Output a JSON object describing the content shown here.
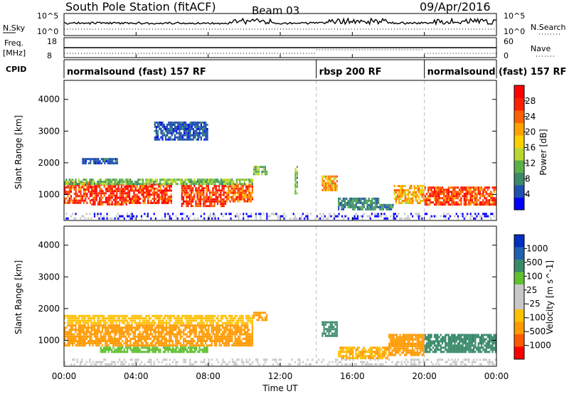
{
  "header": {
    "station": "South Pole Station (fitACF)",
    "beam": "Beam 03",
    "date": "09/Apr/2016"
  },
  "info_panels": {
    "nsky_label": "N.Sky",
    "nsearch_label": "N.Search",
    "nsky_ticks": [
      "10^5",
      "10^0"
    ],
    "nsearch_ticks": [
      "10^5",
      "10^0"
    ],
    "freq_label": "Freq.",
    "freq_unit": "[MHz]",
    "freq_ticks": [
      "18",
      "8"
    ],
    "nave_label": "Nave",
    "nave_ticks": [
      "60",
      "0"
    ],
    "cpid_label": "CPID",
    "cpid_segments": [
      {
        "label": "normalsound (fast) 157 RF",
        "start_hour": 0,
        "end_hour": 14
      },
      {
        "label": "rbsp 200 RF",
        "start_hour": 14,
        "end_hour": 20
      },
      {
        "label": "normalsound (fast) 157 RF",
        "start_hour": 20,
        "end_hour": 24
      }
    ]
  },
  "colors": {
    "power_scale": [
      "#0000ff",
      "#2050b0",
      "#3a8a6a",
      "#5cb04a",
      "#b8d830",
      "#ffd000",
      "#ffa000",
      "#ff6000",
      "#ff2000",
      "#ff0000"
    ],
    "velocity_scale": [
      "#ff0000",
      "#ff5a00",
      "#ff9a00",
      "#ffc000",
      "#c8c8c8",
      "#c8c8c8",
      "#60c030",
      "#3a8a6a",
      "#2060b0",
      "#0030c0"
    ],
    "gray": "#c8c8c8"
  },
  "chart_data": [
    {
      "type": "heatmap",
      "name": "power",
      "ylabel": "Slant Range [km]",
      "xlabel": "",
      "xlim": [
        0,
        24
      ],
      "ylim": [
        180,
        4600
      ],
      "yticks": [
        "1000",
        "2000",
        "3000",
        "4000"
      ],
      "xtick_hours": [
        0,
        4,
        8,
        12,
        16,
        20,
        24
      ],
      "colorbar": {
        "label": "Power [dB]",
        "ticks": [
          "4",
          "8",
          "12",
          "16",
          "20",
          "24",
          "28"
        ],
        "range": [
          0,
          32
        ]
      },
      "bands": [
        {
          "t0": 0.0,
          "t1": 1.5,
          "r0": 700,
          "r1": 1400,
          "value": 26
        },
        {
          "t0": 1.5,
          "t1": 3.5,
          "r0": 650,
          "r1": 1350,
          "value": 28
        },
        {
          "t0": 3.5,
          "t1": 6.0,
          "r0": 700,
          "r1": 1350,
          "value": 27
        },
        {
          "t0": 6.5,
          "t1": 9.0,
          "r0": 600,
          "r1": 1300,
          "value": 27
        },
        {
          "t0": 9.0,
          "t1": 10.5,
          "r0": 750,
          "r1": 1350,
          "value": 24
        },
        {
          "t0": 0.0,
          "t1": 10.5,
          "r0": 1300,
          "r1": 1500,
          "value": 12
        },
        {
          "t0": 10.5,
          "t1": 11.3,
          "r0": 1600,
          "r1": 1900,
          "value": 12
        },
        {
          "t0": 12.8,
          "t1": 13.0,
          "r0": 1000,
          "r1": 1900,
          "value": 12
        },
        {
          "t0": 14.3,
          "t1": 15.2,
          "r0": 1100,
          "r1": 1600,
          "value": 20
        },
        {
          "t0": 15.2,
          "t1": 17.5,
          "r0": 500,
          "r1": 900,
          "value": 8
        },
        {
          "t0": 17.5,
          "t1": 18.3,
          "r0": 500,
          "r1": 700,
          "value": 8
        },
        {
          "t0": 18.3,
          "t1": 20.0,
          "r0": 700,
          "r1": 1300,
          "value": 20
        },
        {
          "t0": 20.0,
          "t1": 24.0,
          "r0": 650,
          "r1": 1250,
          "value": 26
        },
        {
          "t0": 1.0,
          "t1": 3.0,
          "r0": 1950,
          "r1": 2150,
          "value": 5
        },
        {
          "t0": 5.0,
          "t1": 8.0,
          "r0": 2700,
          "r1": 3300,
          "value": 5
        },
        {
          "t0": 0.0,
          "t1": 24.0,
          "r0": 200,
          "r1": 420,
          "value": 0
        }
      ]
    },
    {
      "type": "heatmap",
      "name": "velocity",
      "ylabel": "Slant Range [km]",
      "xlabel": "Time UT",
      "xlim": [
        0,
        24
      ],
      "ylim": [
        180,
        4600
      ],
      "yticks": [
        "1000",
        "2000",
        "3000",
        "4000"
      ],
      "xticks": [
        "00:00",
        "04:00",
        "08:00",
        "12:00",
        "16:00",
        "20:00",
        "00:00"
      ],
      "xtick_hours": [
        0,
        4,
        8,
        12,
        16,
        20,
        24
      ],
      "colorbar": {
        "label": "Velocity [m s^-1]",
        "ticks": [
          "1000",
          "500",
          "100",
          "25",
          "-25",
          "-100",
          "-500",
          "-1000"
        ]
      },
      "bands": [
        {
          "t0": 0.0,
          "t1": 10.5,
          "r0": 800,
          "r1": 1500,
          "value": -150
        },
        {
          "t0": 0.0,
          "t1": 10.5,
          "r0": 1500,
          "r1": 1800,
          "value": -80
        },
        {
          "t0": 2.0,
          "t1": 8.0,
          "r0": 600,
          "r1": 800,
          "value": 60
        },
        {
          "t0": 10.5,
          "t1": 11.3,
          "r0": 1600,
          "r1": 1900,
          "value": -200
        },
        {
          "t0": 14.3,
          "t1": 15.2,
          "r0": 1100,
          "r1": 1600,
          "value": 150
        },
        {
          "t0": 15.2,
          "t1": 18.0,
          "r0": 400,
          "r1": 800,
          "value": -100
        },
        {
          "t0": 18.0,
          "t1": 20.0,
          "r0": 500,
          "r1": 1200,
          "value": -150
        },
        {
          "t0": 20.0,
          "t1": 24.0,
          "r0": 600,
          "r1": 1200,
          "value": 400
        },
        {
          "t0": 0.0,
          "t1": 24.0,
          "r0": 200,
          "r1": 420,
          "value": 0
        }
      ]
    }
  ]
}
